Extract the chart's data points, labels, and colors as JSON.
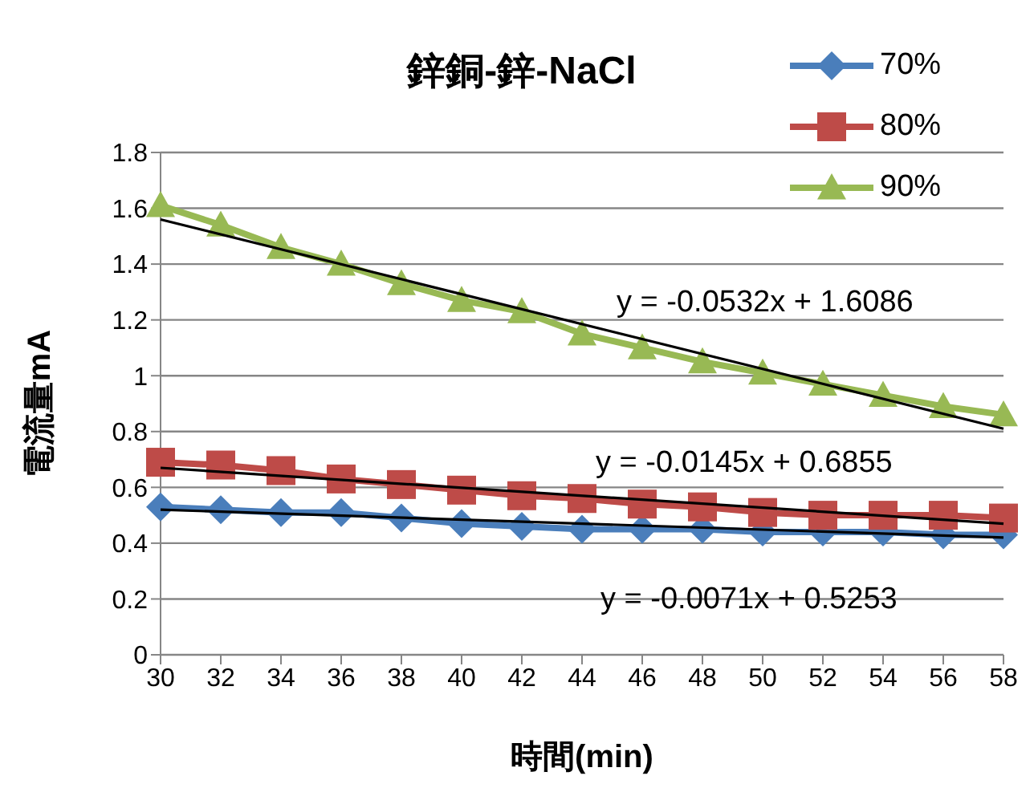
{
  "chart_data": {
    "type": "line",
    "title": "鋅銅-鋅-NaCl",
    "xlabel": "時間(min)",
    "ylabel": "電流量mA",
    "categories": [
      "30",
      "32",
      "34",
      "36",
      "38",
      "40",
      "42",
      "44",
      "46",
      "48",
      "50",
      "52",
      "54",
      "56",
      "58"
    ],
    "ylim": [
      0,
      1.8
    ],
    "yticks": [
      0,
      0.2,
      0.4,
      0.6,
      0.8,
      1,
      1.2,
      1.4,
      1.6,
      1.8
    ],
    "grid": "y",
    "legend": "top right",
    "series": [
      {
        "name": "70%",
        "color": "#4a7ebb",
        "marker": "diamond",
        "values": [
          0.53,
          0.52,
          0.51,
          0.51,
          0.49,
          0.47,
          0.46,
          0.45,
          0.45,
          0.45,
          0.44,
          0.44,
          0.44,
          0.43,
          0.43
        ]
      },
      {
        "name": "80%",
        "color": "#be4b48",
        "marker": "square",
        "values": [
          0.69,
          0.68,
          0.66,
          0.63,
          0.61,
          0.59,
          0.57,
          0.56,
          0.54,
          0.53,
          0.51,
          0.5,
          0.5,
          0.5,
          0.49
        ]
      },
      {
        "name": "90%",
        "color": "#98b954",
        "marker": "triangle",
        "values": [
          1.61,
          1.54,
          1.46,
          1.4,
          1.33,
          1.27,
          1.23,
          1.15,
          1.1,
          1.05,
          1.01,
          0.97,
          0.93,
          0.89,
          0.86
        ]
      },
      {
        "type": "line",
        "color": "#000000",
        "marker": "none",
        "x": [
          "30",
          "58"
        ],
        "values": [
          0.52,
          0.42
        ]
      },
      {
        "type": "line",
        "color": "#000000",
        "marker": "none",
        "x": [
          "30",
          "58"
        ],
        "values": [
          0.67,
          0.47
        ]
      },
      {
        "type": "line",
        "color": "#000000",
        "marker": "none",
        "x": [
          "30",
          "58"
        ],
        "values": [
          1.56,
          0.81
        ]
      }
    ],
    "annotations": [
      "y = -0.0532x + 1.6086",
      "y = -0.0145x + 0.6855",
      "y = -0.0071x + 0.5253"
    ]
  }
}
